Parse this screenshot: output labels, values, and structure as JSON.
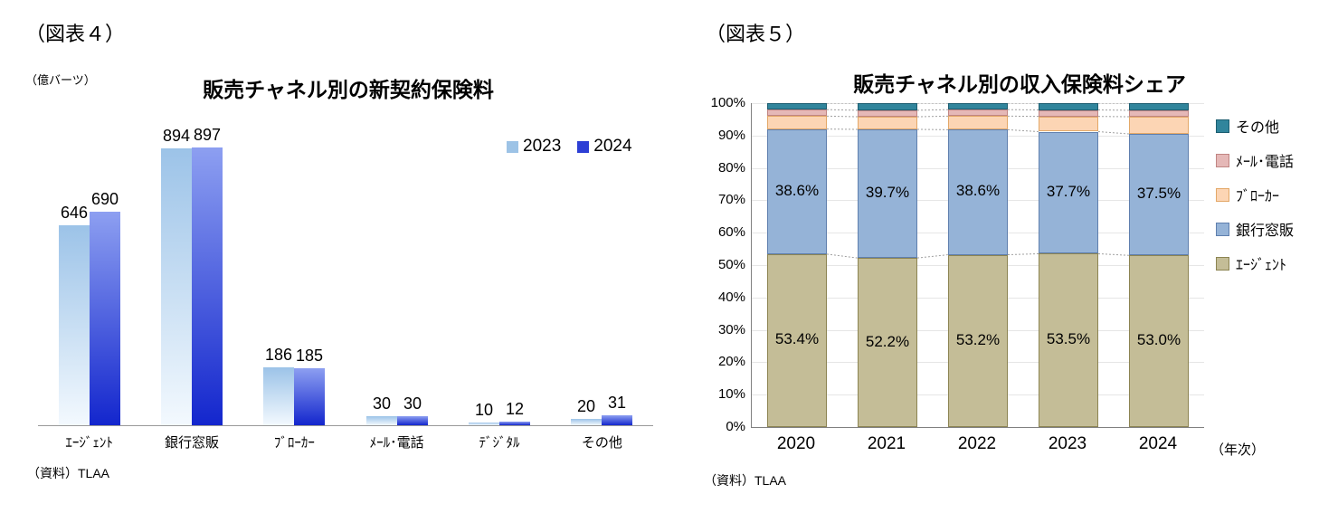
{
  "figure4": {
    "tag": "（図表４）",
    "unit_label": "（億バーツ）",
    "title": "販売チャネル別の新契約保険料",
    "source": "（資料）TLAA"
  },
  "figure5": {
    "tag": "（図表５）",
    "title": "販売チャネル別の収入保険料シェア",
    "axis_note": "（年次）",
    "source": "（資料）TLAA"
  },
  "chart_data": [
    {
      "type": "bar",
      "title": "販売チャネル別の新契約保険料",
      "unit": "億バーツ",
      "categories": [
        "ｴｰｼﾞｪﾝﾄ",
        "銀行窓販",
        "ﾌﾞﾛｰｶｰ",
        "ﾒｰﾙ･電話",
        "ﾃﾞｼﾞﾀﾙ",
        "その他"
      ],
      "series": [
        {
          "name": "2023",
          "values": [
            646,
            894,
            186,
            30,
            10,
            20
          ],
          "color": "#9dc3e6",
          "gradient": [
            "#9cc3e8",
            "#f3f9fe"
          ]
        },
        {
          "name": "2024",
          "values": [
            690,
            897,
            185,
            30,
            12,
            31
          ],
          "color": "#2d3fd5",
          "gradient": [
            "#8d9ff1",
            "#1326cd"
          ]
        }
      ],
      "ylim": [
        0,
        1000
      ],
      "grid": false,
      "legend_position": "top-right"
    },
    {
      "type": "stacked-bar-100",
      "title": "販売チャネル別の収入保険料シェア",
      "categories": [
        "2020",
        "2021",
        "2022",
        "2023",
        "2024"
      ],
      "series": [
        {
          "name": "ｴｰｼﾞｪﾝﾄ",
          "values": [
            53.4,
            52.2,
            53.2,
            53.5,
            53.0
          ],
          "show_labels": true,
          "color": "#c4bd97",
          "border": "#8c8452"
        },
        {
          "name": "銀行窓販",
          "values": [
            38.6,
            39.7,
            38.6,
            37.7,
            37.5
          ],
          "show_labels": true,
          "color": "#95b3d7",
          "border": "#5f7fae"
        },
        {
          "name": "ﾌﾞﾛｰｶｰ",
          "values": [
            4.0,
            3.9,
            4.2,
            4.7,
            5.3
          ],
          "show_labels": false,
          "color": "#fcd5b4",
          "border": "#e3a868"
        },
        {
          "name": "ﾒｰﾙ･電話",
          "values": [
            2.0,
            2.0,
            2.0,
            2.0,
            2.0
          ],
          "show_labels": false,
          "color": "#e5b8b7",
          "border": "#c08583"
        },
        {
          "name": "その他",
          "values": [
            2.0,
            2.2,
            2.0,
            2.1,
            2.2
          ],
          "show_labels": false,
          "color": "#31859c",
          "border": "#1d5e71"
        }
      ],
      "ylim": [
        0,
        100
      ],
      "yticks": [
        "0%",
        "10%",
        "20%",
        "30%",
        "40%",
        "50%",
        "60%",
        "70%",
        "80%",
        "90%",
        "100%"
      ],
      "grid": true,
      "legend_position": "right",
      "xaxis_note": "（年次）"
    }
  ]
}
